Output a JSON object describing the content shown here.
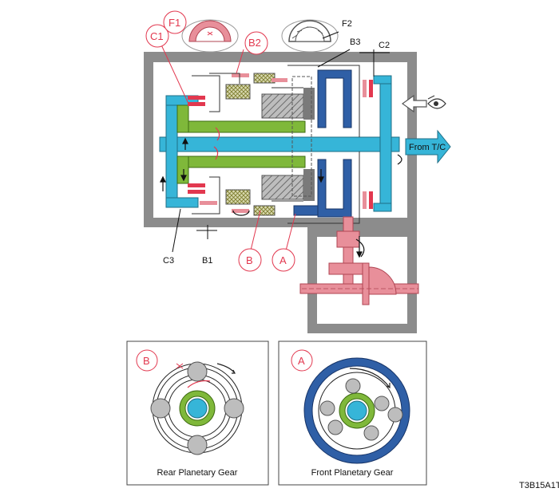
{
  "labels": {
    "c1": "C1",
    "f1": "F1",
    "b2": "B2",
    "f2": "F2",
    "b3": "B3",
    "c2": "C2",
    "c3": "C3",
    "b1": "B1",
    "b": "B",
    "a": "A",
    "from_tc": "From T/C"
  },
  "panels": {
    "rear": {
      "badge": "B",
      "caption": "Rear Planetary Gear"
    },
    "front": {
      "badge": "A",
      "caption": "Front Planetary Gear"
    }
  },
  "figure_id": "T3B15A1T",
  "colors": {
    "housing": "#8c8c8c",
    "input_shaft": "#36b5d8",
    "intermediate": "#7fb83a",
    "ring_gear": "#2f5fa6",
    "output": "#e88f9a",
    "clutch_disc": "#e2384f",
    "sprag": "#8a8a2a"
  }
}
